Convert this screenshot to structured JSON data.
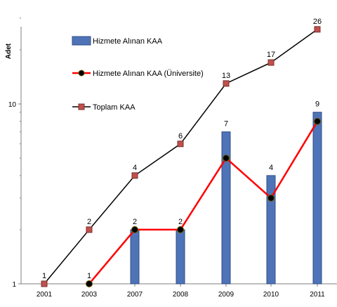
{
  "chart_data": {
    "type": "bar",
    "ylabel": "Adet",
    "yscale": "log",
    "ylim": [
      1,
      30
    ],
    "yticks": [
      1,
      10
    ],
    "categories": [
      "2001",
      "2003",
      "2007",
      "2008",
      "2009",
      "2010",
      "2011"
    ],
    "series": [
      {
        "name": "Hizmete Alınan KAA",
        "type": "bar",
        "color": "#4f73b7",
        "values": [
          null,
          null,
          2,
          2,
          7,
          4,
          9
        ]
      },
      {
        "name": "Hizmete Alınan KAA (Üniversite)",
        "type": "line",
        "color": "#ff0000",
        "marker": "circle",
        "values": [
          null,
          1,
          2,
          2,
          5,
          3,
          8
        ]
      },
      {
        "name": "Toplam KAA",
        "type": "line",
        "color": "#000000",
        "marker": "square",
        "values": [
          1,
          2,
          4,
          6,
          13,
          17,
          26
        ]
      }
    ],
    "data_labels": [
      {
        "category": "2001",
        "text": "1",
        "anchor_value": 1
      },
      {
        "category": "2003",
        "text": "2",
        "anchor_value": 2
      },
      {
        "category": "2003",
        "text": "1",
        "anchor_value": 1
      },
      {
        "category": "2007",
        "text": "4",
        "anchor_value": 4
      },
      {
        "category": "2007",
        "text": "2",
        "anchor_value": 2
      },
      {
        "category": "2008",
        "text": "6",
        "anchor_value": 6
      },
      {
        "category": "2008",
        "text": "2",
        "anchor_value": 2
      },
      {
        "category": "2009",
        "text": "13",
        "anchor_value": 13
      },
      {
        "category": "2009",
        "text": "7",
        "anchor_value": 7
      },
      {
        "category": "2010",
        "text": "17",
        "anchor_value": 17
      },
      {
        "category": "2010",
        "text": "4",
        "anchor_value": 4
      },
      {
        "category": "2011",
        "text": "26",
        "anchor_value": 26
      },
      {
        "category": "2011",
        "text": "9",
        "anchor_value": 9
      }
    ],
    "legend": "top-left"
  }
}
